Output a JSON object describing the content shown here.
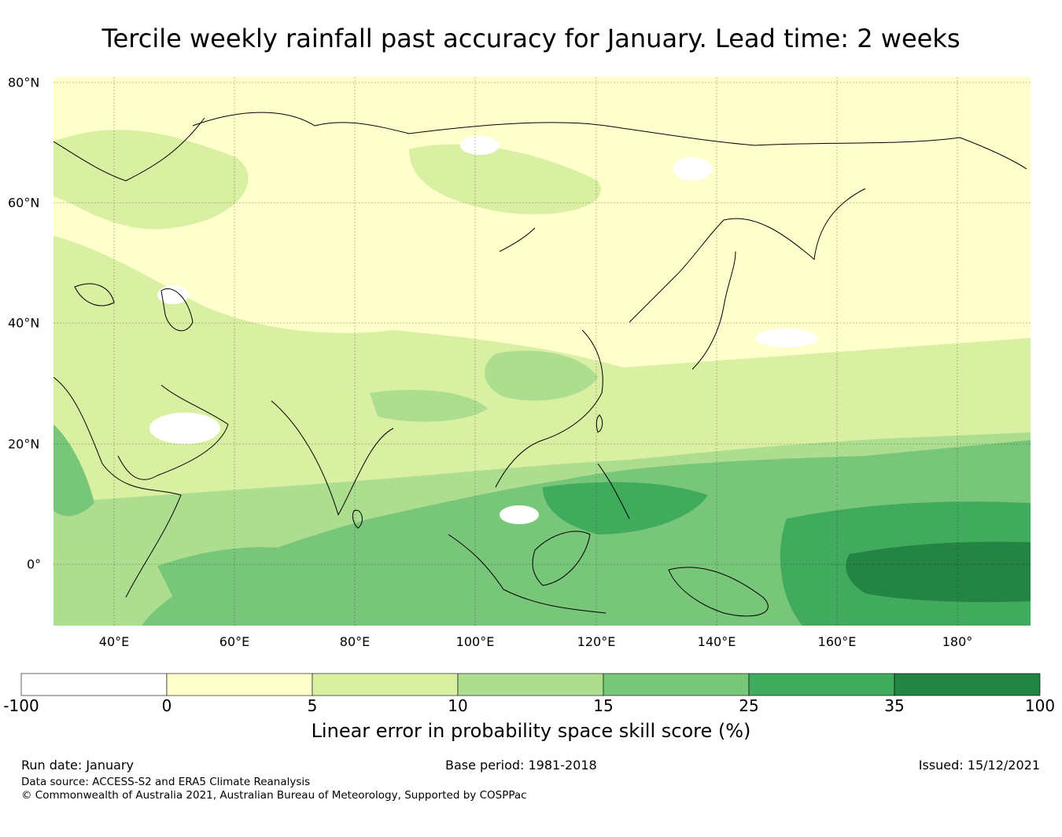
{
  "title": "Tercile weekly rainfall past accuracy for January. Lead time: 2 weeks",
  "map": {
    "lat_labels": [
      "80°N",
      "60°N",
      "40°N",
      "20°N",
      "0°"
    ],
    "lon_labels": [
      "40°E",
      "60°E",
      "80°E",
      "100°E",
      "120°E",
      "140°E",
      "160°E",
      "180°"
    ],
    "lat_range": [
      -10,
      81
    ],
    "lon_range": [
      30,
      192
    ]
  },
  "colorbar": {
    "ticks": [
      "-100",
      "0",
      "5",
      "10",
      "15",
      "25",
      "35",
      "100"
    ],
    "colors": [
      "#ffffff",
      "#ffffcc",
      "#d9f0a3",
      "#addd8e",
      "#78c679",
      "#41ab5d",
      "#238443"
    ],
    "label": "Linear error in probability space skill score (%)"
  },
  "footer": {
    "run_date": "Run date: January",
    "base_period": "Base period: 1981-2018",
    "issued": "Issued: 15/12/2021",
    "data_source": "Data source: ACCESS-S2 and ERA5 Climate Reanalysis",
    "copyright": "© Commonwealth of Australia 2021, Australian Bureau of Meteorology, Supported by COSPPac"
  }
}
